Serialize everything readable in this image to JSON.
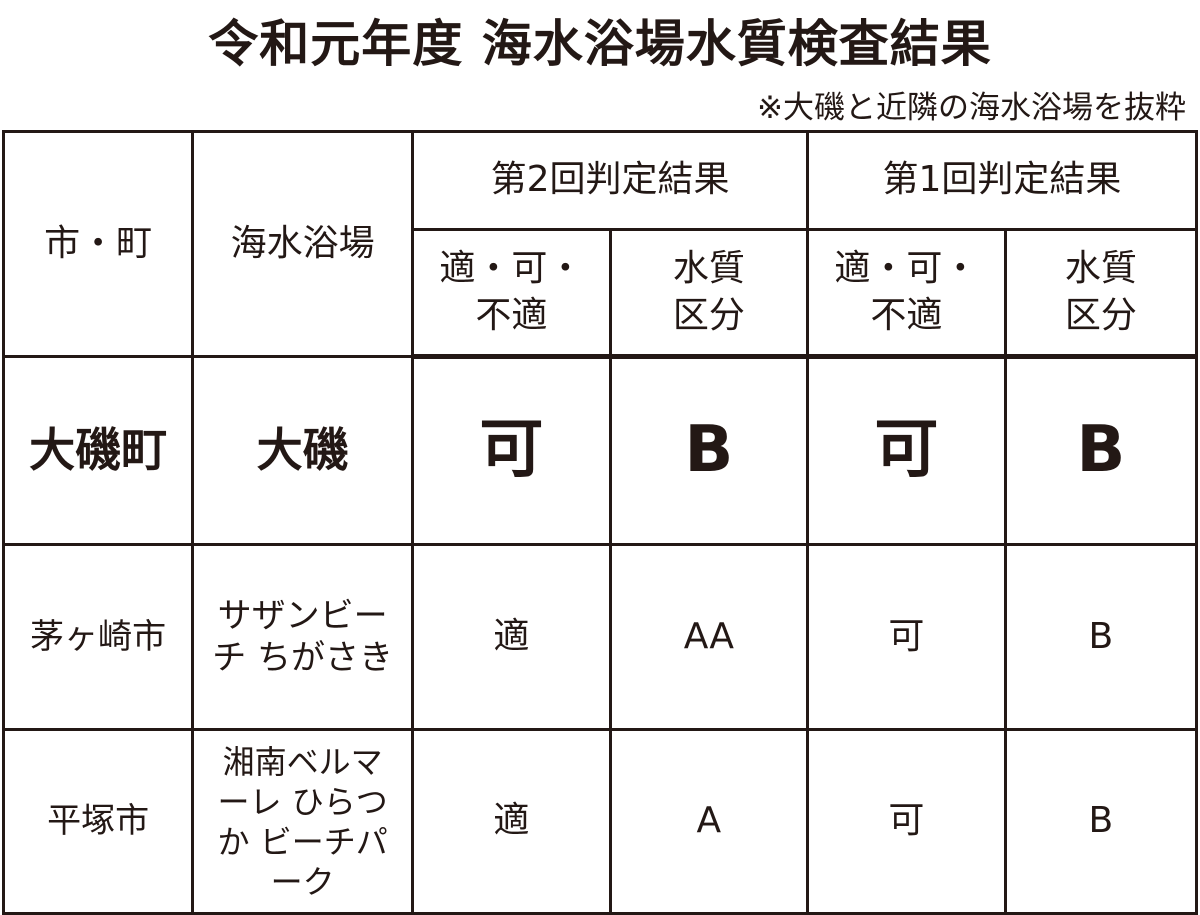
{
  "title": "令和元年度 海水浴場水質検査結果",
  "note": "※大磯と近隣の海水浴場を抜粋",
  "headers": {
    "city": "市・町",
    "beach": "海水浴場",
    "round2": "第2回判定結果",
    "round1": "第1回判定結果",
    "suitability": "適・可・不適",
    "quality": "水質区分"
  },
  "rows": [
    {
      "city": "大磯町",
      "beach": "大磯",
      "r2_judge": "可",
      "r2_class": "B",
      "r1_judge": "可",
      "r1_class": "B",
      "highlight": true
    },
    {
      "city": "茅ヶ崎市",
      "beach": "サザンビーチ ちがさき",
      "r2_judge": "適",
      "r2_class": "AA",
      "r1_judge": "可",
      "r1_class": "B"
    },
    {
      "city": "平塚市",
      "beach": "湘南ベルマーレ ひらつか ビーチパーク",
      "r2_judge": "適",
      "r2_class": "A",
      "r1_judge": "可",
      "r1_class": "B"
    }
  ]
}
